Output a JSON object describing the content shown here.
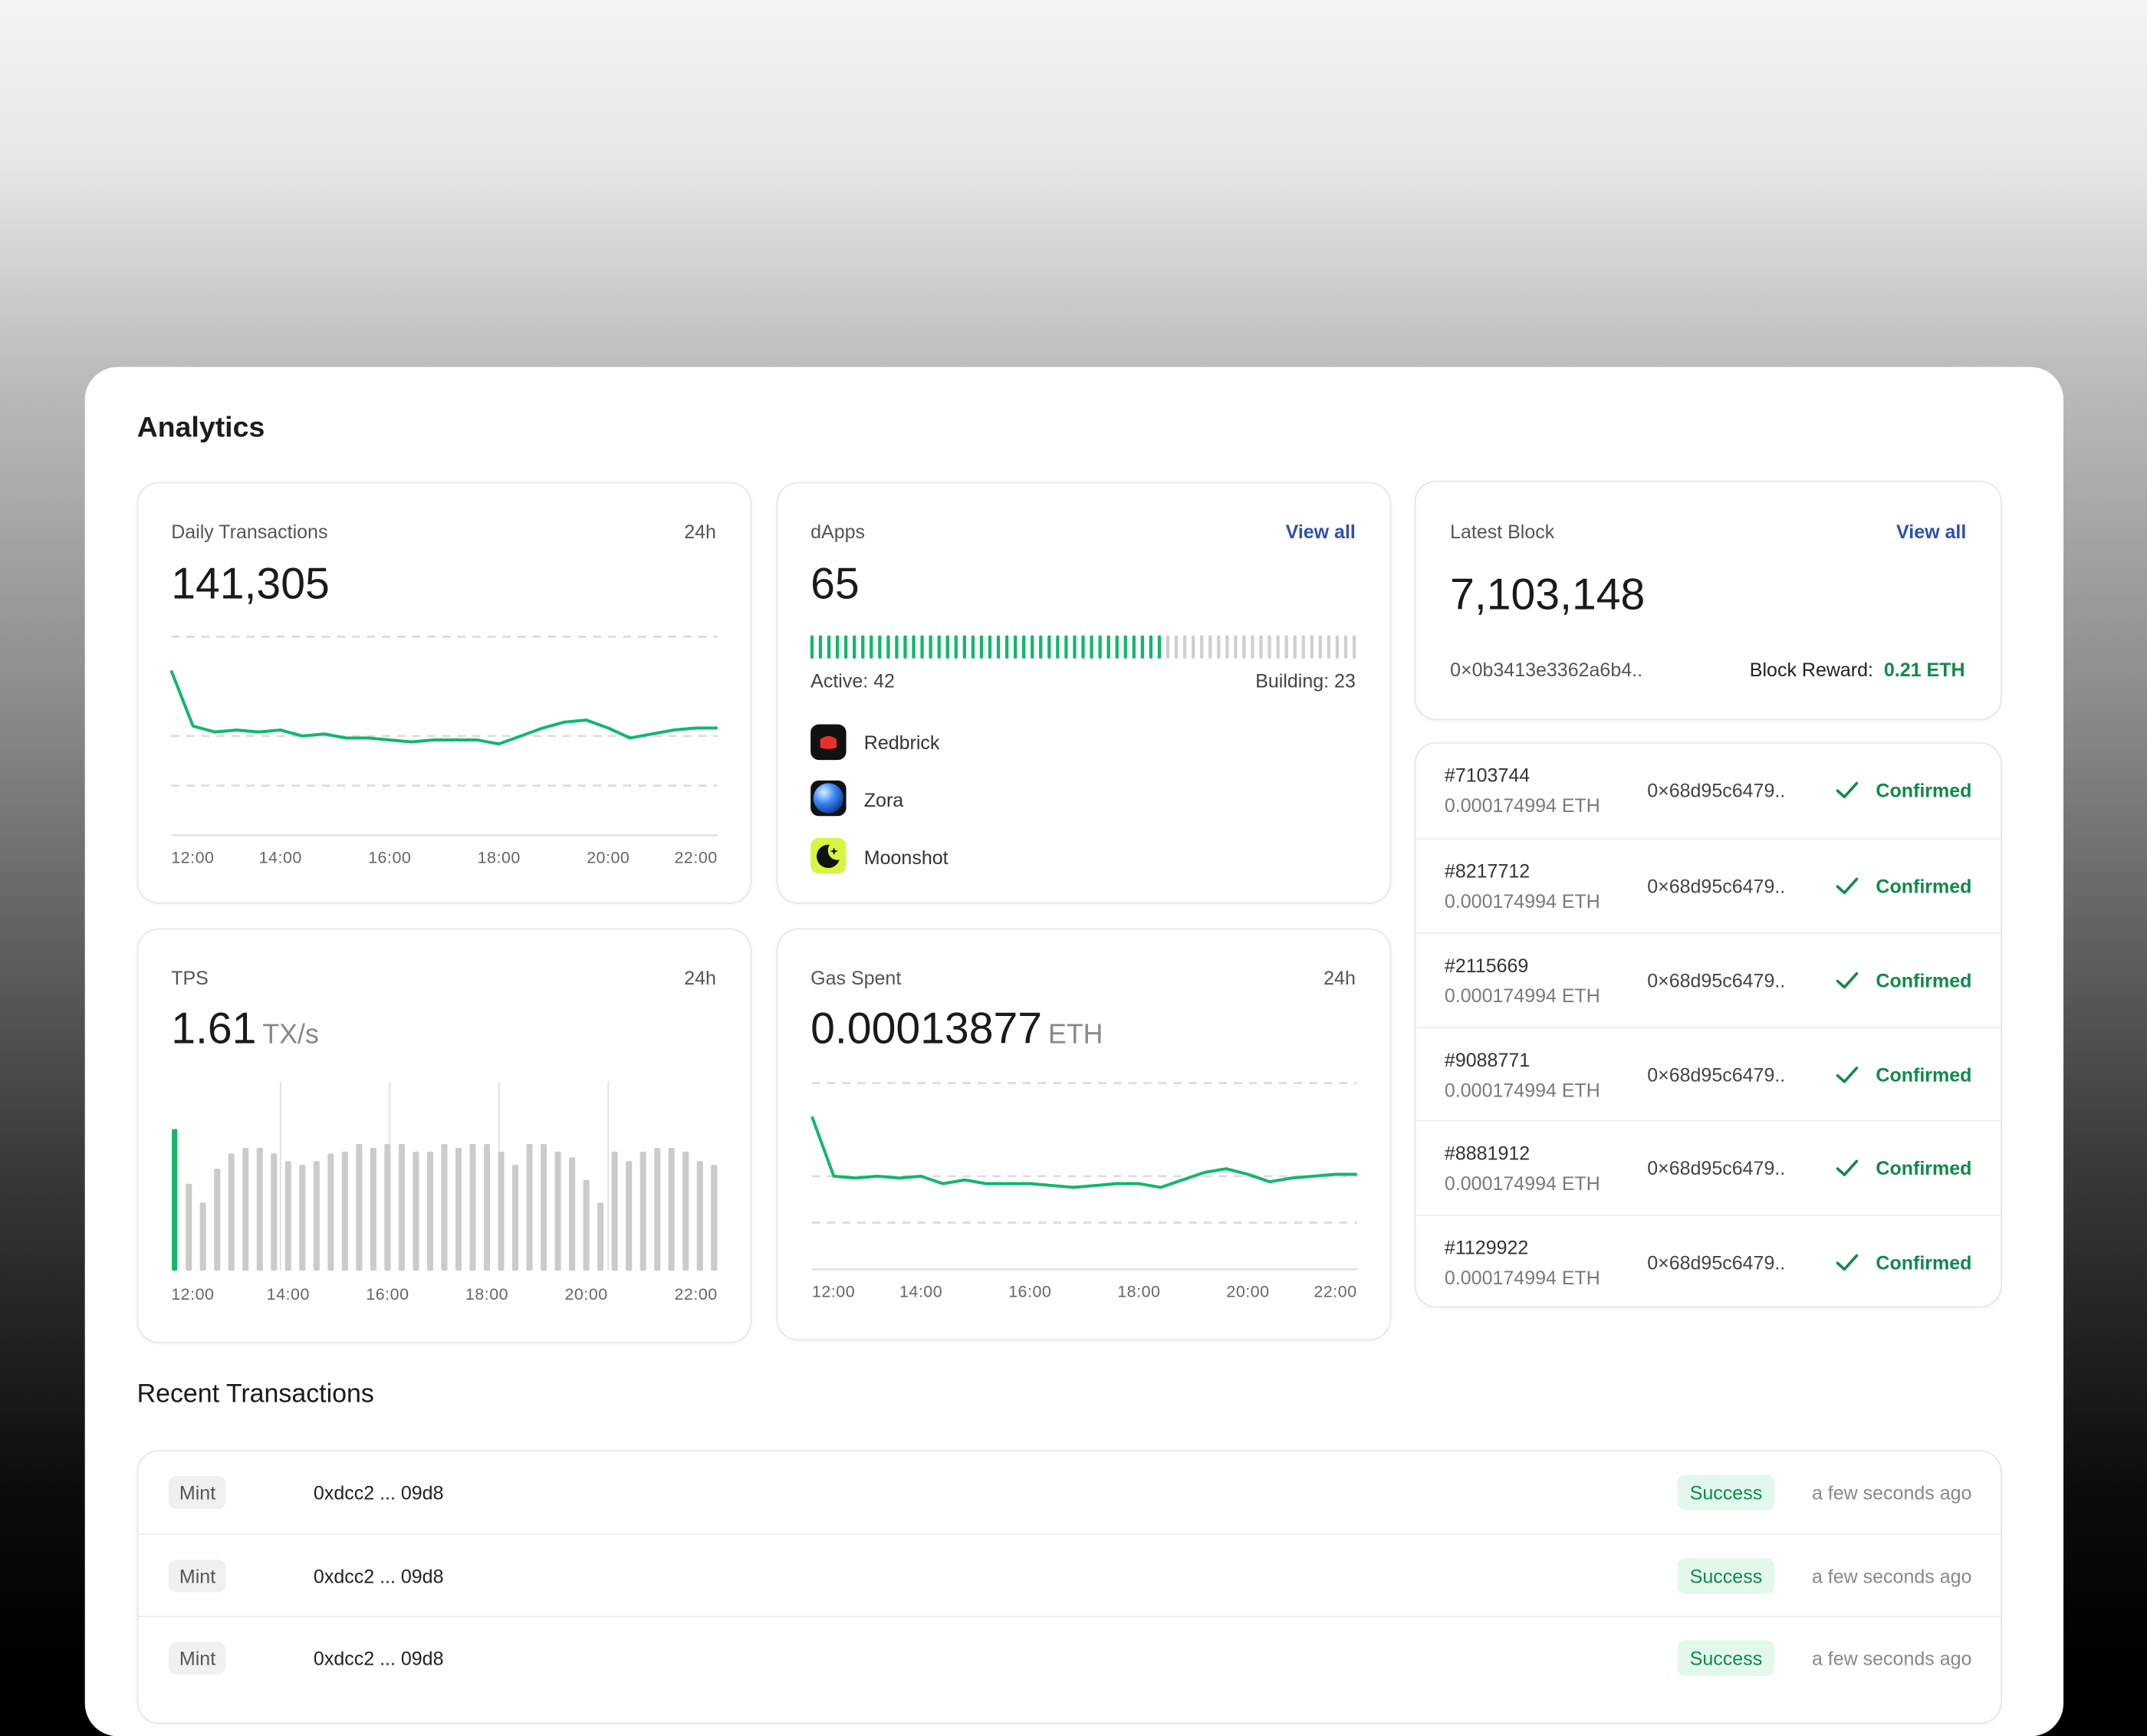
{
  "title": "Analytics",
  "daily_transactions": {
    "label": "Daily Transactions",
    "period": "24h",
    "value": "141,305",
    "chart": {
      "type": "line",
      "color": "#12b76a",
      "categories": [
        "12:00",
        null,
        null,
        null,
        null,
        "14:00",
        null,
        null,
        null,
        null,
        "16:00",
        null,
        null,
        null,
        null,
        "18:00",
        null,
        null,
        null,
        null,
        "20:00",
        null,
        null,
        null,
        null,
        "22:00"
      ],
      "values": [
        83,
        55,
        52,
        53,
        52,
        53,
        50,
        51,
        49,
        49,
        48,
        47,
        48,
        48,
        48,
        46,
        50,
        54,
        57,
        58,
        54,
        49,
        51,
        53,
        54,
        54
      ],
      "ylim": [
        0,
        100
      ],
      "yticks": [
        25,
        50,
        100
      ],
      "grid": true
    }
  },
  "dapps": {
    "label": "dApps",
    "link": "View all",
    "value": "65",
    "active_label": "Active:",
    "active": 42,
    "building_label": "Building:",
    "building": 23,
    "apps": [
      "Redbrick",
      "Zora",
      "Moonshot"
    ]
  },
  "latest_block": {
    "label": "Latest Block",
    "link": "View all",
    "value": "7,103,148",
    "hash": "0×0b3413e3362a6b4..",
    "reward_label": "Block Reward:",
    "reward": "0.21 ETH"
  },
  "blocks": [
    {
      "id": "#7103744",
      "amount": "0.000174994 ETH",
      "hash": "0×68d95c6479..",
      "status": "Confirmed"
    },
    {
      "id": "#8217712",
      "amount": "0.000174994 ETH",
      "hash": "0×68d95c6479..",
      "status": "Confirmed"
    },
    {
      "id": "#2115669",
      "amount": "0.000174994 ETH",
      "hash": "0×68d95c6479..",
      "status": "Confirmed"
    },
    {
      "id": "#9088771",
      "amount": "0.000174994 ETH",
      "hash": "0×68d95c6479..",
      "status": "Confirmed"
    },
    {
      "id": "#8881912",
      "amount": "0.000174994 ETH",
      "hash": "0×68d95c6479..",
      "status": "Confirmed"
    },
    {
      "id": "#1129922",
      "amount": "0.000174994 ETH",
      "hash": "0×68d95c6479..",
      "status": "Confirmed"
    }
  ],
  "tps": {
    "label": "TPS",
    "period": "24h",
    "value": "1.61",
    "unit": "TX/s",
    "chart": {
      "type": "bar",
      "color": "#cbcbcb",
      "highlight_color": "#12b76a",
      "highlight": 0,
      "categories": [
        "12:00",
        null,
        null,
        null,
        null,
        null,
        null,
        null,
        "14:00",
        null,
        null,
        null,
        null,
        null,
        null,
        "16:00",
        null,
        null,
        null,
        null,
        null,
        null,
        "18:00",
        null,
        null,
        null,
        null,
        null,
        null,
        "20:00",
        null,
        null,
        null,
        null,
        null,
        null,
        null,
        null,
        "22:00"
      ],
      "values": [
        75,
        46,
        36,
        54,
        62,
        65,
        65,
        62,
        58,
        56,
        58,
        62,
        63,
        67,
        65,
        67,
        67,
        63,
        63,
        67,
        65,
        67,
        67,
        63,
        56,
        67,
        67,
        63,
        60,
        48,
        36,
        63,
        58,
        63,
        65,
        65,
        63,
        58,
        56
      ],
      "ylim": [
        0,
        100
      ]
    }
  },
  "gas_spent": {
    "label": "Gas Spent",
    "period": "24h",
    "value": "0.00013877",
    "unit": "ETH",
    "chart": {
      "type": "line",
      "color": "#12b76a",
      "categories": [
        "12:00",
        null,
        null,
        null,
        null,
        "14:00",
        null,
        null,
        null,
        null,
        "16:00",
        null,
        null,
        null,
        null,
        "18:00",
        null,
        null,
        null,
        null,
        "20:00",
        null,
        null,
        null,
        null,
        "22:00"
      ],
      "values": [
        82,
        50,
        49,
        50,
        49,
        50,
        46,
        48,
        46,
        46,
        46,
        45,
        44,
        45,
        46,
        46,
        44,
        48,
        52,
        54,
        51,
        47,
        49,
        50,
        51,
        51
      ],
      "ylim": [
        0,
        100
      ],
      "yticks": [
        25,
        50,
        100
      ],
      "grid": true
    }
  },
  "recent_transactions": {
    "title": "Recent Transactions",
    "rows": [
      {
        "type": "Mint",
        "hash": "0xdcc2 ... 09d8",
        "status": "Success",
        "time": "a few seconds ago"
      },
      {
        "type": "Mint",
        "hash": "0xdcc2 ... 09d8",
        "status": "Success",
        "time": "a few seconds ago"
      },
      {
        "type": "Mint",
        "hash": "0xdcc2 ... 09d8",
        "status": "Success",
        "time": "a few seconds ago"
      }
    ]
  }
}
